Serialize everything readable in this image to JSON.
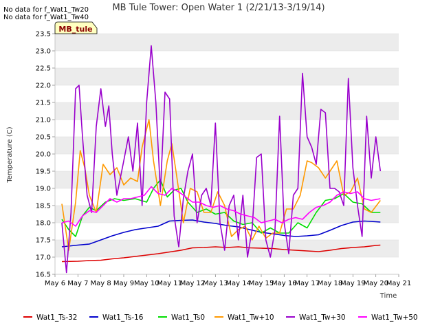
{
  "notes": [
    "No data for f_Wat1_Tw20",
    "No data for f_Wat1_Tw40"
  ],
  "badge": "MB_tule",
  "chart_data": {
    "type": "line",
    "title": "MB Tule Tower: Open Water 1 (2/21/13-3/19/14)",
    "xlabel": "Time",
    "ylabel": "Temperature (C)",
    "ylim": [
      16.5,
      23.5
    ],
    "yticks": [
      "16.5",
      "17.0",
      "17.5",
      "18.0",
      "18.5",
      "19.0",
      "19.5",
      "20.0",
      "20.5",
      "21.0",
      "21.5",
      "22.0",
      "22.5",
      "23.0",
      "23.5"
    ],
    "xlim": [
      6,
      21
    ],
    "xticks": [
      "May 6",
      "May 7",
      "May 8",
      "May 9",
      "May 10",
      "May 11",
      "May 12",
      "May 13",
      "May 14",
      "May 15",
      "May 16",
      "May 17",
      "May 18",
      "May 19",
      "May 20",
      "May 21"
    ],
    "grid": "horizontal bands",
    "legend_position": "bottom",
    "series": [
      {
        "name": "Wat1_Ts-32",
        "color": "#dd0000",
        "x": [
          6.3,
          7,
          7.5,
          8,
          8.5,
          9,
          9.5,
          10,
          10.5,
          11,
          11.5,
          12,
          12.5,
          13,
          13.5,
          14,
          14.5,
          15,
          15.5,
          16,
          16.5,
          17,
          17.5,
          18,
          18.5,
          19,
          19.5,
          20,
          20.2
        ],
        "values": [
          16.87,
          16.88,
          16.9,
          16.91,
          16.95,
          16.98,
          17.02,
          17.06,
          17.1,
          17.15,
          17.2,
          17.27,
          17.28,
          17.3,
          17.28,
          17.3,
          17.27,
          17.26,
          17.25,
          17.22,
          17.2,
          17.18,
          17.16,
          17.2,
          17.25,
          17.28,
          17.3,
          17.34,
          17.35
        ]
      },
      {
        "name": "Wat1_Ts-16",
        "color": "#0000cc",
        "x": [
          6.3,
          7,
          7.5,
          8,
          8.5,
          9,
          9.5,
          10,
          10.5,
          11,
          11.5,
          12,
          12.5,
          13,
          13.5,
          14,
          14.5,
          15,
          15.5,
          16,
          16.5,
          17,
          17.5,
          18,
          18.5,
          19,
          19.5,
          20,
          20.2
        ],
        "values": [
          17.3,
          17.35,
          17.38,
          17.5,
          17.62,
          17.72,
          17.8,
          17.85,
          17.9,
          18.05,
          18.07,
          18.08,
          18.02,
          17.98,
          17.92,
          17.88,
          17.8,
          17.72,
          17.68,
          17.63,
          17.6,
          17.62,
          17.65,
          17.78,
          17.92,
          18.02,
          18.05,
          18.03,
          18.02
        ]
      },
      {
        "name": "Wat1_Ts0",
        "color": "#00dd00",
        "x": [
          6.3,
          6.6,
          6.9,
          7.2,
          7.5,
          7.8,
          8.2,
          8.6,
          9,
          9.5,
          10,
          10.3,
          10.6,
          10.9,
          11.2,
          11.5,
          11.8,
          12.2,
          12.6,
          13,
          13.4,
          13.8,
          14.2,
          14.6,
          15,
          15.4,
          15.8,
          16.2,
          16.6,
          17,
          17.4,
          17.8,
          18.2,
          18.6,
          19,
          19.4,
          19.8,
          20.2
        ],
        "values": [
          18.1,
          17.8,
          17.6,
          18.2,
          18.45,
          18.35,
          18.6,
          18.7,
          18.65,
          18.7,
          18.6,
          19.0,
          19.25,
          18.75,
          18.95,
          19.0,
          18.6,
          18.3,
          18.4,
          18.25,
          18.3,
          18.05,
          17.95,
          18.0,
          17.7,
          17.85,
          17.7,
          17.7,
          18.0,
          17.85,
          18.3,
          18.65,
          18.7,
          18.85,
          18.6,
          18.55,
          18.3,
          18.3
        ]
      },
      {
        "name": "Wat1_Tw+10",
        "color": "#ff9900",
        "x": [
          6.3,
          6.6,
          6.9,
          7.1,
          7.3,
          7.5,
          7.8,
          8.1,
          8.4,
          8.7,
          9,
          9.3,
          9.6,
          9.8,
          10.1,
          10.3,
          10.6,
          10.9,
          11.1,
          11.3,
          11.6,
          11.9,
          12.2,
          12.5,
          12.8,
          13.1,
          13.4,
          13.7,
          14,
          14.3,
          14.6,
          14.9,
          15.2,
          15.5,
          15.8,
          16.1,
          16.4,
          16.7,
          17,
          17.2,
          17.5,
          17.8,
          18,
          18.3,
          18.6,
          18.9,
          19.2,
          19.5,
          19.8,
          20.2
        ],
        "values": [
          18.55,
          17.2,
          18.6,
          20.1,
          19.6,
          18.8,
          18.3,
          19.7,
          19.4,
          19.6,
          19.1,
          19.3,
          19.2,
          20.2,
          21.0,
          19.8,
          18.5,
          19.8,
          20.3,
          19.4,
          18.0,
          19.0,
          18.9,
          18.3,
          18.3,
          18.9,
          18.5,
          17.6,
          17.8,
          17.9,
          17.5,
          17.9,
          17.55,
          17.7,
          17.7,
          18.4,
          18.4,
          18.8,
          19.8,
          19.75,
          19.6,
          19.3,
          19.5,
          19.8,
          18.8,
          18.9,
          19.3,
          18.4,
          18.3,
          18.65
        ]
      },
      {
        "name": "Wat1_Tw+30",
        "color": "#9900cc",
        "x": [
          6.3,
          6.5,
          6.7,
          6.9,
          7.05,
          7.2,
          7.4,
          7.6,
          7.8,
          8,
          8.2,
          8.35,
          8.5,
          8.7,
          9,
          9.2,
          9.4,
          9.6,
          9.8,
          10,
          10.2,
          10.4,
          10.6,
          10.8,
          11,
          11.2,
          11.4,
          11.6,
          11.8,
          12,
          12.2,
          12.4,
          12.6,
          12.8,
          13,
          13.2,
          13.4,
          13.6,
          13.8,
          14,
          14.2,
          14.4,
          14.6,
          14.8,
          15,
          15.2,
          15.4,
          15.6,
          15.8,
          16,
          16.2,
          16.4,
          16.6,
          16.8,
          17,
          17.2,
          17.4,
          17.6,
          17.8,
          18,
          18.2,
          18.4,
          18.6,
          18.8,
          19,
          19.2,
          19.4,
          19.6,
          19.8,
          20,
          20.2
        ],
        "values": [
          18.0,
          16.55,
          18.3,
          21.9,
          22.0,
          20.5,
          18.8,
          18.3,
          20.8,
          21.9,
          20.8,
          21.4,
          20.0,
          18.8,
          19.8,
          20.5,
          19.5,
          20.9,
          18.5,
          21.5,
          23.15,
          21.5,
          18.9,
          21.8,
          21.6,
          18.2,
          17.3,
          18.7,
          19.5,
          20.0,
          18.0,
          18.8,
          19.0,
          18.5,
          20.9,
          18.0,
          17.2,
          18.5,
          18.8,
          17.5,
          18.8,
          17.0,
          17.8,
          19.9,
          20.0,
          17.5,
          17.0,
          17.8,
          21.1,
          18.0,
          17.1,
          18.8,
          19.0,
          22.35,
          20.5,
          20.2,
          19.7,
          21.3,
          21.2,
          19.0,
          19.0,
          18.9,
          18.5,
          22.2,
          19.6,
          18.5,
          17.6,
          21.1,
          19.3,
          20.5,
          19.5
        ]
      },
      {
        "name": "Wat1_Tw+50",
        "color": "#ff00ff",
        "x": [
          6.3,
          6.6,
          6.9,
          7.2,
          7.5,
          7.8,
          8.1,
          8.4,
          8.7,
          9,
          9.3,
          9.6,
          9.9,
          10.2,
          10.5,
          10.8,
          11.1,
          11.4,
          11.7,
          12,
          12.3,
          12.6,
          12.9,
          13.2,
          13.5,
          13.8,
          14.1,
          14.4,
          14.7,
          15,
          15.3,
          15.6,
          15.9,
          16.2,
          16.5,
          16.8,
          17.1,
          17.4,
          17.7,
          18,
          18.3,
          18.6,
          18.9,
          19.2,
          19.5,
          19.8,
          20.2
        ],
        "values": [
          18.0,
          18.05,
          17.9,
          18.2,
          18.35,
          18.3,
          18.5,
          18.7,
          18.6,
          18.7,
          18.7,
          18.75,
          18.8,
          19.05,
          18.85,
          18.8,
          19.0,
          18.9,
          18.75,
          18.6,
          18.6,
          18.5,
          18.45,
          18.5,
          18.4,
          18.35,
          18.25,
          18.2,
          18.15,
          18.0,
          18.05,
          18.1,
          18.0,
          18.1,
          18.15,
          18.1,
          18.3,
          18.45,
          18.5,
          18.6,
          18.8,
          18.9,
          18.85,
          18.9,
          18.7,
          18.65,
          18.7
        ]
      }
    ]
  }
}
